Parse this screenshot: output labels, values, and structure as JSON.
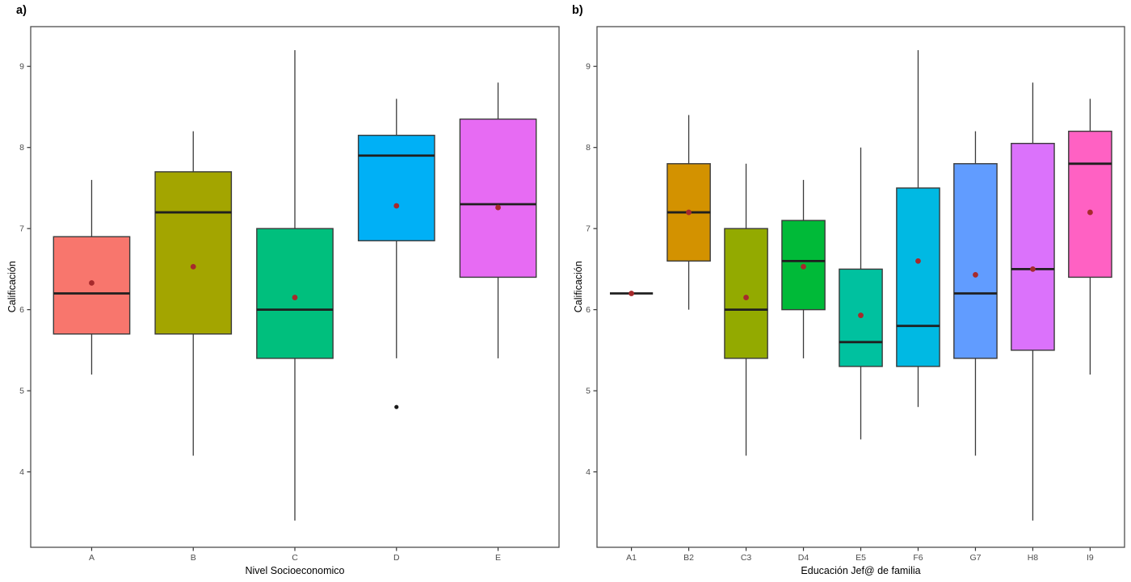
{
  "style": {
    "background": "#FFFFFF",
    "panel_border_color": "#4D4D4D",
    "box_stroke_color": "#3A3A3A",
    "median_line_color": "#1F1F1F",
    "whisker_color": "#3A3A3A",
    "mean_dot_color": "#A62A2C",
    "outlier_dot_color": "#1A1A1A",
    "tick_label_color": "#4D4D4D",
    "axis_title_color": "#000000"
  },
  "chart_data": [
    {
      "id": "a",
      "type": "boxplot",
      "panel_label": "a)",
      "xlabel": "Nivel Socioeconomico",
      "ylabel": "Calificación",
      "yticks": [
        4,
        5,
        6,
        7,
        8,
        9
      ],
      "ylim": [
        3.07,
        9.49
      ],
      "grid": false,
      "legend": "none",
      "categories": [
        "A",
        "B",
        "C",
        "D",
        "E"
      ],
      "boxes": [
        {
          "category": "A",
          "fill": "#F8766D",
          "min": 5.2,
          "q1": 5.7,
          "median": 6.2,
          "q3": 6.9,
          "max": 7.6,
          "mean": 6.33,
          "outliers": []
        },
        {
          "category": "B",
          "fill": "#A3A500",
          "min": 4.2,
          "q1": 5.7,
          "median": 7.2,
          "q3": 7.7,
          "max": 8.2,
          "mean": 6.53,
          "outliers": []
        },
        {
          "category": "C",
          "fill": "#00BF7D",
          "min": 3.4,
          "q1": 5.4,
          "median": 6.0,
          "q3": 7.0,
          "max": 9.2,
          "mean": 6.15,
          "outliers": []
        },
        {
          "category": "D",
          "fill": "#00B0F6",
          "min": 5.4,
          "q1": 6.85,
          "median": 7.9,
          "q3": 8.15,
          "max": 8.6,
          "mean": 7.28,
          "outliers": [
            4.8
          ]
        },
        {
          "category": "E",
          "fill": "#E76BF3",
          "min": 5.4,
          "q1": 6.4,
          "median": 7.3,
          "q3": 8.35,
          "max": 8.8,
          "mean": 7.26,
          "outliers": []
        }
      ]
    },
    {
      "id": "b",
      "type": "boxplot",
      "panel_label": "b)",
      "xlabel": "Educación Jef@ de familia",
      "ylabel": "Calificación",
      "yticks": [
        4,
        5,
        6,
        7,
        8,
        9
      ],
      "ylim": [
        3.07,
        9.49
      ],
      "grid": false,
      "legend": "none",
      "categories": [
        "A1",
        "B2",
        "C3",
        "D4",
        "E5",
        "F6",
        "G7",
        "H8",
        "I9"
      ],
      "boxes": [
        {
          "category": "A1",
          "fill": "#F8766D",
          "min": 6.2,
          "q1": 6.2,
          "median": 6.2,
          "q3": 6.2,
          "max": 6.2,
          "mean": 6.2,
          "outliers": []
        },
        {
          "category": "B2",
          "fill": "#D39200",
          "min": 6.0,
          "q1": 6.6,
          "median": 7.2,
          "q3": 7.8,
          "max": 8.4,
          "mean": 7.2,
          "outliers": []
        },
        {
          "category": "C3",
          "fill": "#93AA00",
          "min": 4.2,
          "q1": 5.4,
          "median": 6.0,
          "q3": 7.0,
          "max": 7.8,
          "mean": 6.15,
          "outliers": []
        },
        {
          "category": "D4",
          "fill": "#00BA38",
          "min": 5.4,
          "q1": 6.0,
          "median": 6.6,
          "q3": 7.1,
          "max": 7.6,
          "mean": 6.53,
          "outliers": []
        },
        {
          "category": "E5",
          "fill": "#00C19F",
          "min": 4.4,
          "q1": 5.3,
          "median": 5.6,
          "q3": 6.5,
          "max": 8.0,
          "mean": 5.93,
          "outliers": []
        },
        {
          "category": "F6",
          "fill": "#00B9E3",
          "min": 4.8,
          "q1": 5.3,
          "median": 5.8,
          "q3": 7.5,
          "max": 9.2,
          "mean": 6.6,
          "outliers": []
        },
        {
          "category": "G7",
          "fill": "#619CFF",
          "min": 4.2,
          "q1": 5.4,
          "median": 6.2,
          "q3": 7.8,
          "max": 8.2,
          "mean": 6.43,
          "outliers": []
        },
        {
          "category": "H8",
          "fill": "#DB72FB",
          "min": 3.4,
          "q1": 5.5,
          "median": 6.5,
          "q3": 8.05,
          "max": 8.8,
          "mean": 6.5,
          "outliers": []
        },
        {
          "category": "I9",
          "fill": "#FF61C3",
          "min": 5.2,
          "q1": 6.4,
          "median": 7.8,
          "q3": 8.2,
          "max": 8.6,
          "mean": 7.2,
          "outliers": []
        }
      ]
    }
  ]
}
